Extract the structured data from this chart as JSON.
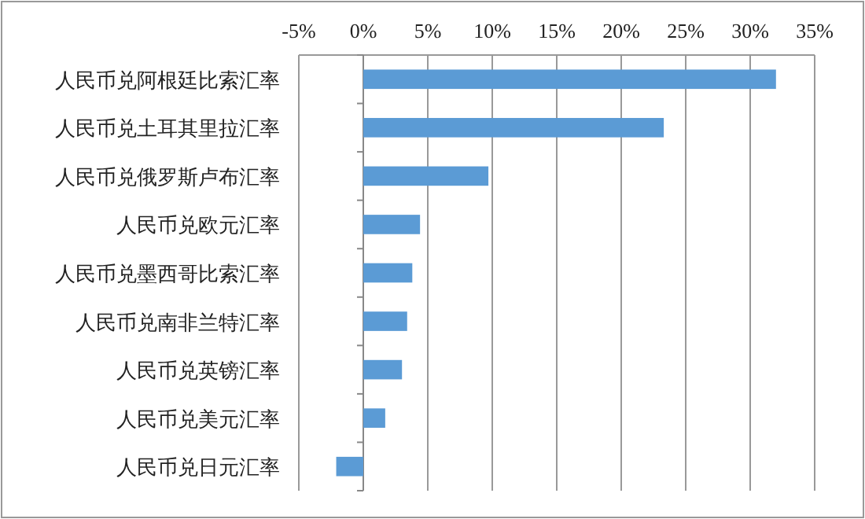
{
  "chart_data": {
    "type": "bar",
    "orientation": "horizontal",
    "categories": [
      "人民币兑阿根廷比索汇率",
      "人民币兑土耳其里拉汇率",
      "人民币兑俄罗斯卢布汇率",
      "人民币兑欧元汇率",
      "人民币兑墨西哥比索汇率",
      "人民币兑南非兰特汇率",
      "人民币兑英镑汇率",
      "人民币兑美元汇率",
      "人民币兑日元汇率"
    ],
    "values": [
      32.0,
      23.3,
      9.7,
      4.4,
      3.8,
      3.4,
      3.0,
      1.7,
      -2.1
    ],
    "color": "#5b9bd5",
    "xlim": [
      -5,
      35
    ],
    "xticks": [
      {
        "value": -5,
        "label": "-5%"
      },
      {
        "value": 0,
        "label": "0%"
      },
      {
        "value": 5,
        "label": "5%"
      },
      {
        "value": 10,
        "label": "10%"
      },
      {
        "value": 15,
        "label": "15%"
      },
      {
        "value": 20,
        "label": "20%"
      },
      {
        "value": 25,
        "label": "25%"
      },
      {
        "value": 30,
        "label": "30%"
      },
      {
        "value": 35,
        "label": "35%"
      }
    ],
    "grid": "x"
  }
}
